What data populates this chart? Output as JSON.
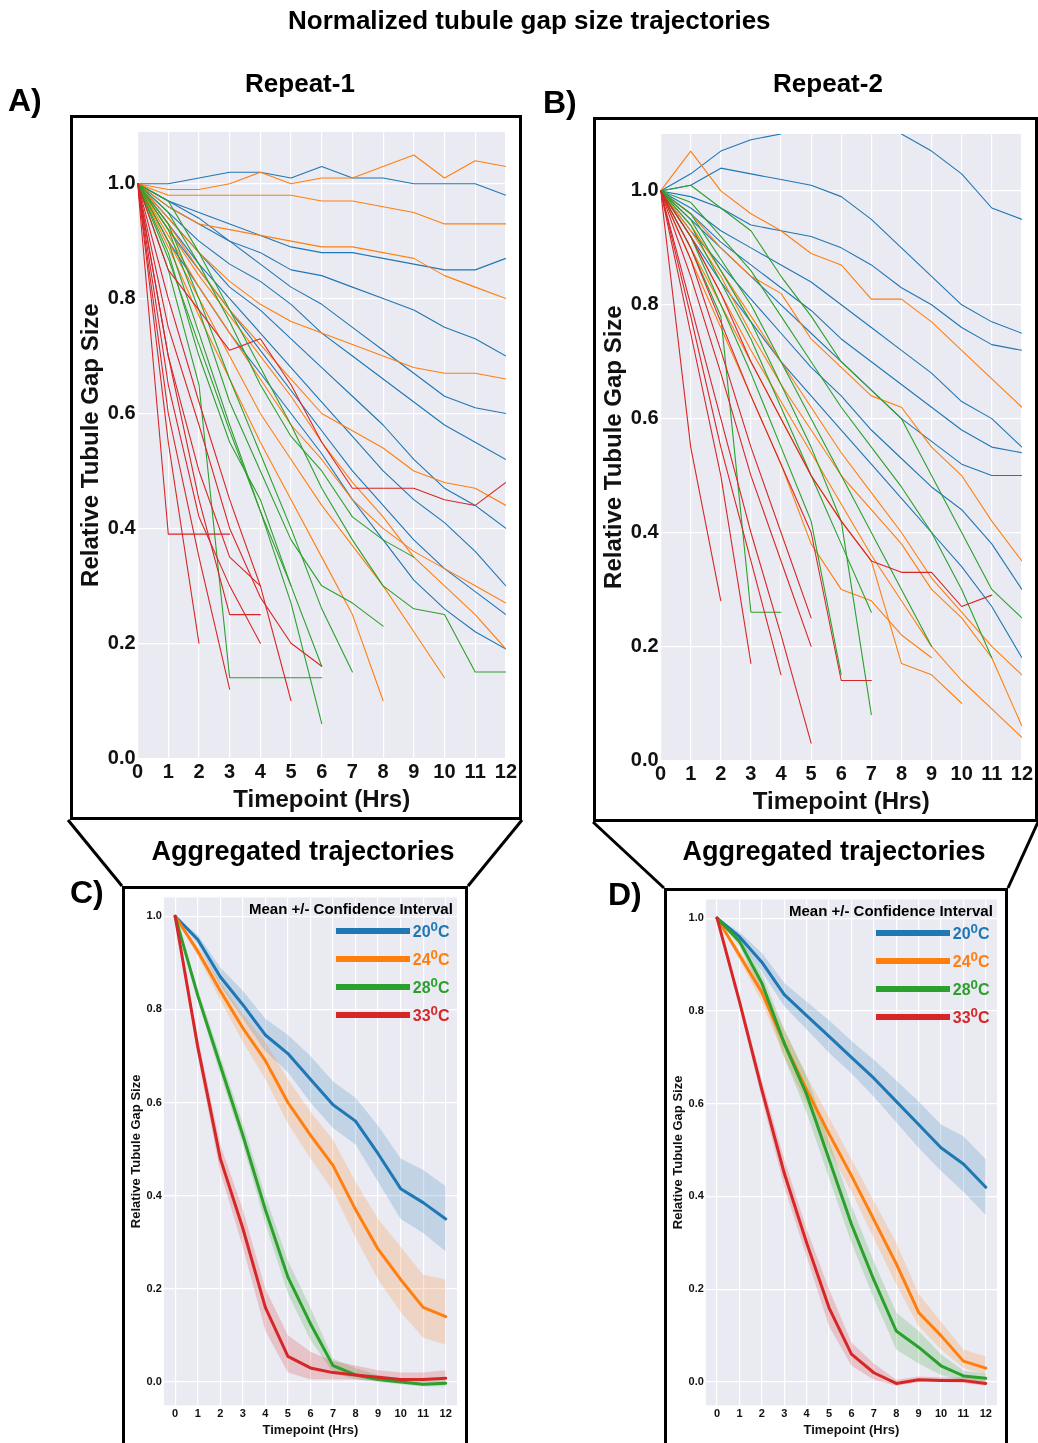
{
  "chart_data": [
    {
      "type": "line",
      "title": "Repeat-1",
      "annotations": [
        "A)",
        "Normalized tubule gap size trajectories"
      ],
      "xlabel": "Timepoint (Hrs)",
      "ylabel": "Relative Tubule Gap Size",
      "x": [
        0,
        1,
        2,
        3,
        4,
        5,
        6,
        7,
        8,
        9,
        10,
        11,
        12
      ],
      "xlim": [
        0,
        12
      ],
      "xticks": [
        0,
        1,
        2,
        3,
        4,
        5,
        6,
        7,
        8,
        9,
        10,
        11,
        12
      ],
      "ylim": [
        0,
        1.09
      ],
      "yticks": [
        {
          "value": 0,
          "label": "0.0"
        },
        {
          "value": 0.2,
          "label": "0.2"
        },
        {
          "value": 0.4,
          "label": "0.4"
        },
        {
          "value": 0.6,
          "label": "0.6"
        },
        {
          "value": 0.8,
          "label": "0.8"
        },
        {
          "value": 1,
          "label": "1.0"
        }
      ],
      "grid": true,
      "marker": "none",
      "series": [
        {
          "color": "#1f77b4",
          "values": [
            1,
            1.0,
            1.01,
            1.02,
            1.02,
            1.01,
            1.03,
            1.01,
            1.01,
            1.0,
            1.0,
            1.0,
            0.98
          ]
        },
        {
          "color": "#1f77b4",
          "values": [
            1,
            0.97,
            0.95,
            0.93,
            0.91,
            0.89,
            0.88,
            0.88,
            0.87,
            0.86,
            0.85,
            0.85,
            0.87
          ]
        },
        {
          "color": "#1f77b4",
          "values": [
            1,
            0.96,
            0.93,
            0.9,
            0.88,
            0.85,
            0.84,
            0.82,
            0.8,
            0.78,
            0.75,
            0.73,
            0.7
          ]
        },
        {
          "color": "#1f77b4",
          "values": [
            1,
            0.97,
            0.94,
            0.9,
            0.86,
            0.82,
            0.79,
            0.75,
            0.71,
            0.67,
            0.63,
            0.61,
            0.6
          ]
        },
        {
          "color": "#1f77b4",
          "values": [
            1,
            0.95,
            0.9,
            0.86,
            0.83,
            0.79,
            0.74,
            0.7,
            0.66,
            0.62,
            0.58,
            0.55,
            0.52
          ]
        },
        {
          "color": "#1f77b4",
          "values": [
            1,
            0.94,
            0.88,
            0.82,
            0.78,
            0.73,
            0.68,
            0.63,
            0.58,
            0.52,
            0.47,
            0.44,
            0.4
          ]
        },
        {
          "color": "#1f77b4",
          "values": [
            1,
            0.93,
            0.86,
            0.8,
            0.74,
            0.68,
            0.62,
            0.56,
            0.5,
            0.45,
            0.41,
            0.36,
            0.3
          ]
        },
        {
          "color": "#1f77b4",
          "values": [
            1,
            0.92,
            0.85,
            0.78,
            0.71,
            0.64,
            0.57,
            0.5,
            0.44,
            0.38,
            0.33,
            0.29,
            0.25
          ]
        },
        {
          "color": "#1f77b4",
          "values": [
            1,
            0.9,
            0.82,
            0.74,
            0.67,
            0.6,
            0.53,
            0.45,
            0.38,
            0.31,
            0.26,
            0.22,
            0.19
          ]
        },
        {
          "color": "#ff7f0e",
          "values": [
            1,
            0.99,
            0.99,
            1.0,
            1.02,
            1.0,
            1.01,
            1.01,
            1.03,
            1.05,
            1.01,
            1.04,
            1.03
          ]
        },
        {
          "color": "#ff7f0e",
          "values": [
            1,
            0.98,
            0.98,
            0.98,
            0.98,
            0.98,
            0.97,
            0.97,
            0.96,
            0.95,
            0.93,
            0.93,
            0.93
          ]
        },
        {
          "color": "#ff7f0e",
          "values": [
            1,
            0.96,
            0.93,
            0.92,
            0.91,
            0.9,
            0.89,
            0.89,
            0.88,
            0.87,
            0.84,
            0.82,
            0.8
          ]
        },
        {
          "color": "#ff7f0e",
          "values": [
            1,
            0.94,
            0.88,
            0.83,
            0.79,
            0.76,
            0.74,
            0.72,
            0.7,
            0.68,
            0.67,
            0.67,
            0.66
          ]
        },
        {
          "color": "#ff7f0e",
          "values": [
            1,
            0.93,
            0.85,
            0.78,
            0.72,
            0.66,
            0.6,
            0.57,
            0.54,
            0.5,
            0.48,
            0.47,
            0.44
          ]
        },
        {
          "color": "#ff7f0e",
          "values": [
            1,
            0.91,
            0.82,
            0.74,
            0.66,
            0.58,
            0.52,
            0.45,
            0.4,
            0.36,
            0.33,
            0.3,
            0.27
          ]
        },
        {
          "color": "#ff7f0e",
          "values": [
            1,
            0.92,
            0.84,
            0.77,
            0.7,
            0.63,
            0.55,
            0.48,
            0.42,
            0.35,
            0.3,
            0.25,
            0.19
          ]
        },
        {
          "color": "#ff7f0e",
          "values": [
            1,
            0.9,
            0.8,
            0.7,
            0.6,
            0.52,
            0.44,
            0.37,
            0.3,
            0.22,
            0.14,
            null,
            null
          ]
        },
        {
          "color": "#ff7f0e",
          "values": [
            1,
            0.89,
            0.77,
            0.66,
            0.55,
            0.45,
            0.35,
            0.25,
            0.1,
            null,
            null,
            null,
            null
          ]
        },
        {
          "color": "#2ca02c",
          "values": [
            1,
            0.97,
            0.88,
            0.78,
            0.68,
            0.58,
            0.47,
            0.38,
            0.3,
            0.26,
            0.25,
            0.15,
            0.15
          ]
        },
        {
          "color": "#2ca02c",
          "values": [
            1,
            0.95,
            0.86,
            0.76,
            0.65,
            0.56,
            0.5,
            0.42,
            0.38,
            0.35,
            null,
            null,
            null
          ]
        },
        {
          "color": "#2ca02c",
          "values": [
            1,
            0.92,
            0.78,
            0.62,
            0.5,
            0.38,
            0.3,
            0.27,
            0.23,
            null,
            null,
            null,
            null
          ]
        },
        {
          "color": "#2ca02c",
          "values": [
            1,
            0.93,
            0.8,
            0.66,
            0.53,
            0.4,
            0.26,
            0.15,
            null,
            null,
            null,
            null,
            null
          ]
        },
        {
          "color": "#2ca02c",
          "values": [
            1,
            0.87,
            0.72,
            0.57,
            0.43,
            0.3,
            null,
            null,
            null,
            null,
            null,
            null,
            null
          ]
        },
        {
          "color": "#2ca02c",
          "values": [
            1,
            0.88,
            0.7,
            0.55,
            0.45,
            0.3,
            0.16,
            null,
            null,
            null,
            null,
            null,
            null
          ]
        },
        {
          "color": "#2ca02c",
          "values": [
            1,
            0.9,
            0.74,
            0.58,
            0.43,
            0.27,
            0.06,
            null,
            null,
            null,
            null,
            null,
            null
          ]
        },
        {
          "color": "#2ca02c",
          "values": [
            1,
            0.85,
            0.65,
            0.14,
            0.14,
            0.14,
            0.14,
            null,
            null,
            null,
            null,
            null,
            null
          ]
        },
        {
          "color": "#d62728",
          "values": [
            1,
            0.85,
            0.78,
            0.71,
            0.73,
            0.65,
            0.55,
            0.47,
            0.47,
            0.47,
            0.45,
            0.44,
            0.48
          ]
        },
        {
          "color": "#d62728",
          "values": [
            1,
            0.75,
            0.58,
            0.4,
            0.28,
            0.2,
            0.16,
            null,
            null,
            null,
            null,
            null,
            null
          ]
        },
        {
          "color": "#d62728",
          "values": [
            1,
            0.8,
            0.62,
            0.45,
            0.3,
            0.1,
            null,
            null,
            null,
            null,
            null,
            null,
            null
          ]
        },
        {
          "color": "#d62728",
          "values": [
            1,
            0.7,
            0.5,
            0.35,
            0.3,
            null,
            null,
            null,
            null,
            null,
            null,
            null,
            null
          ]
        },
        {
          "color": "#d62728",
          "values": [
            1,
            0.65,
            0.42,
            0.3,
            0.2,
            null,
            null,
            null,
            null,
            null,
            null,
            null,
            null
          ]
        },
        {
          "color": "#d62728",
          "values": [
            1,
            0.7,
            0.45,
            0.25,
            0.25,
            null,
            null,
            null,
            null,
            null,
            null,
            null,
            null
          ]
        },
        {
          "color": "#d62728",
          "values": [
            1,
            0.39,
            0.39,
            0.39,
            null,
            null,
            null,
            null,
            null,
            null,
            null,
            null,
            null
          ]
        },
        {
          "color": "#d62728",
          "values": [
            1,
            0.6,
            0.35,
            0.12,
            null,
            null,
            null,
            null,
            null,
            null,
            null,
            null,
            null
          ]
        },
        {
          "color": "#d62728",
          "values": [
            1,
            0.55,
            0.2,
            null,
            null,
            null,
            null,
            null,
            null,
            null,
            null,
            null,
            null
          ]
        }
      ]
    },
    {
      "type": "line",
      "title": "Repeat-2",
      "annotations": [
        "B)"
      ],
      "xlabel": "Timepoint (Hrs)",
      "ylabel": "Relative Tubule Gap Size",
      "x": [
        0,
        1,
        2,
        3,
        4,
        5,
        6,
        7,
        8,
        9,
        10,
        11,
        12
      ],
      "xlim": [
        0,
        12
      ],
      "xticks": [
        0,
        1,
        2,
        3,
        4,
        5,
        6,
        7,
        8,
        9,
        10,
        11,
        12
      ],
      "ylim": [
        0,
        1.1
      ],
      "yticks": [
        {
          "value": 0,
          "label": "0.0"
        },
        {
          "value": 0.2,
          "label": "0.2"
        },
        {
          "value": 0.4,
          "label": "0.4"
        },
        {
          "value": 0.6,
          "label": "0.6"
        },
        {
          "value": 0.8,
          "label": "0.8"
        },
        {
          "value": 1,
          "label": "1.0"
        }
      ],
      "grid": true,
      "marker": "none",
      "series": [
        {
          "color": "#1f77b4",
          "values": [
            1,
            1.03,
            1.07,
            1.09,
            1.1,
            null,
            null,
            null,
            null,
            null,
            null,
            null,
            null
          ]
        },
        {
          "color": "#1f77b4",
          "values": [
            null,
            null,
            null,
            null,
            null,
            null,
            null,
            null,
            1.1,
            1.07,
            1.03,
            0.97,
            0.95
          ]
        },
        {
          "color": "#1f77b4",
          "values": [
            1,
            1.01,
            1.04,
            1.03,
            1.02,
            1.01,
            0.99,
            0.95,
            0.9,
            0.85,
            0.8,
            0.77,
            0.75
          ]
        },
        {
          "color": "#1f77b4",
          "values": [
            1,
            0.99,
            0.97,
            0.94,
            0.93,
            0.92,
            0.9,
            0.87,
            0.83,
            0.8,
            0.76,
            0.73,
            0.72
          ]
        },
        {
          "color": "#1f77b4",
          "values": [
            1,
            0.97,
            0.93,
            0.9,
            0.87,
            0.84,
            0.8,
            0.76,
            0.72,
            0.68,
            0.63,
            0.6,
            0.55
          ]
        },
        {
          "color": "#1f77b4",
          "values": [
            1,
            0.96,
            0.91,
            0.87,
            0.83,
            0.79,
            0.74,
            0.7,
            0.66,
            0.62,
            0.58,
            0.55,
            0.54
          ]
        },
        {
          "color": "#1f77b4",
          "values": [
            1,
            0.95,
            0.9,
            0.85,
            0.8,
            0.75,
            0.7,
            0.65,
            0.6,
            0.56,
            0.52,
            0.5,
            0.5
          ]
        },
        {
          "color": "#1f77b4",
          "values": [
            1,
            0.93,
            0.87,
            0.81,
            0.75,
            0.69,
            0.64,
            0.58,
            0.53,
            0.48,
            0.44,
            0.38,
            0.3
          ]
        },
        {
          "color": "#1f77b4",
          "values": [
            1,
            0.92,
            0.84,
            0.77,
            0.7,
            0.64,
            0.58,
            0.52,
            0.46,
            0.4,
            0.34,
            0.27,
            0.18
          ]
        },
        {
          "color": "#ff7f0e",
          "values": [
            1,
            1.07,
            1.0,
            0.96,
            0.93,
            0.89,
            0.87,
            0.81,
            0.81,
            0.77,
            0.72,
            0.67,
            0.62
          ]
        },
        {
          "color": "#ff7f0e",
          "values": [
            1,
            0.96,
            0.9,
            0.85,
            0.82,
            0.74,
            0.69,
            0.64,
            0.62,
            0.55,
            0.5,
            0.42,
            0.35
          ]
        },
        {
          "color": "#ff7f0e",
          "values": [
            1,
            0.94,
            0.86,
            0.78,
            0.7,
            0.62,
            0.54,
            0.47,
            0.4,
            0.32,
            0.26,
            0.2,
            0.15
          ]
        },
        {
          "color": "#ff7f0e",
          "values": [
            1,
            0.93,
            0.85,
            0.75,
            0.66,
            0.58,
            0.5,
            0.44,
            0.38,
            0.3,
            0.25,
            0.18,
            0.06
          ]
        },
        {
          "color": "#ff7f0e",
          "values": [
            1,
            0.92,
            0.82,
            0.72,
            0.63,
            0.54,
            0.45,
            0.36,
            0.28,
            0.2,
            0.14,
            0.09,
            0.04
          ]
        },
        {
          "color": "#ff7f0e",
          "values": [
            1,
            0.9,
            0.8,
            0.7,
            0.6,
            0.5,
            0.42,
            0.35,
            0.17,
            0.15,
            0.1,
            null,
            null
          ]
        },
        {
          "color": "#ff7f0e",
          "values": [
            1,
            0.88,
            0.76,
            0.64,
            0.52,
            0.38,
            0.3,
            0.28,
            0.22,
            0.18,
            null,
            null,
            null
          ]
        },
        {
          "color": "#2ca02c",
          "values": [
            1,
            1.01,
            0.97,
            0.93,
            0.85,
            0.78,
            0.7,
            0.65,
            0.6,
            0.5,
            0.4,
            0.3,
            0.25
          ]
        },
        {
          "color": "#2ca02c",
          "values": [
            1,
            0.98,
            0.92,
            0.86,
            0.78,
            0.7,
            0.62,
            0.55,
            0.48,
            0.4,
            0.3,
            0.18,
            null
          ]
        },
        {
          "color": "#2ca02c",
          "values": [
            1,
            0.96,
            0.88,
            0.8,
            0.7,
            0.6,
            0.5,
            0.4,
            0.3,
            0.2,
            null,
            null,
            null
          ]
        },
        {
          "color": "#2ca02c",
          "values": [
            1,
            0.94,
            0.84,
            0.74,
            0.62,
            0.5,
            0.38,
            0.26,
            null,
            null,
            null,
            null,
            null
          ]
        },
        {
          "color": "#2ca02c",
          "values": [
            1,
            0.95,
            0.86,
            0.77,
            0.66,
            0.55,
            0.42,
            0.08,
            null,
            null,
            null,
            null,
            null
          ]
        },
        {
          "color": "#2ca02c",
          "values": [
            1,
            0.92,
            0.8,
            0.68,
            0.55,
            0.42,
            0.15,
            null,
            null,
            null,
            null,
            null,
            null
          ]
        },
        {
          "color": "#2ca02c",
          "values": [
            1,
            0.9,
            0.78,
            0.26,
            0.26,
            null,
            null,
            null,
            null,
            null,
            null,
            null,
            null
          ]
        },
        {
          "color": "#d62728",
          "values": [
            1,
            0.92,
            0.82,
            0.7,
            0.6,
            0.5,
            0.42,
            0.35,
            0.33,
            0.33,
            0.27,
            0.29,
            null
          ]
        },
        {
          "color": "#d62728",
          "values": [
            1,
            0.9,
            0.77,
            0.64,
            0.52,
            0.4,
            0.14,
            0.14,
            null,
            null,
            null,
            null,
            null
          ]
        },
        {
          "color": "#d62728",
          "values": [
            1,
            0.88,
            0.72,
            0.55,
            0.4,
            0.25,
            null,
            null,
            null,
            null,
            null,
            null,
            null
          ]
        },
        {
          "color": "#d62728",
          "values": [
            1,
            0.85,
            0.68,
            0.5,
            0.35,
            0.2,
            null,
            null,
            null,
            null,
            null,
            null,
            null
          ]
        },
        {
          "color": "#d62728",
          "values": [
            1,
            0.8,
            0.6,
            0.4,
            0.22,
            0.03,
            null,
            null,
            null,
            null,
            null,
            null,
            null
          ]
        },
        {
          "color": "#d62728",
          "values": [
            1,
            0.78,
            0.55,
            0.35,
            0.15,
            null,
            null,
            null,
            null,
            null,
            null,
            null,
            null
          ]
        },
        {
          "color": "#d62728",
          "values": [
            1,
            0.75,
            0.5,
            0.17,
            null,
            null,
            null,
            null,
            null,
            null,
            null,
            null,
            null
          ]
        },
        {
          "color": "#d62728",
          "values": [
            1,
            0.55,
            0.28,
            null,
            null,
            null,
            null,
            null,
            null,
            null,
            null,
            null,
            null
          ]
        }
      ]
    },
    {
      "type": "line",
      "title": "Aggregated trajectories",
      "annotations": [
        "C)"
      ],
      "legend_title": "Mean +/- Confidence Interval",
      "legend": "top right",
      "xlabel": "Timepoint (Hrs)",
      "ylabel": "Relative Tubule Gap Size",
      "x": [
        0,
        1,
        2,
        3,
        4,
        5,
        6,
        7,
        8,
        9,
        10,
        11,
        12
      ],
      "xlim": [
        -0.5,
        12.5
      ],
      "xticks": [
        0,
        1,
        2,
        3,
        4,
        5,
        6,
        7,
        8,
        9,
        10,
        11,
        12
      ],
      "ylim": [
        -0.05,
        1.04
      ],
      "yticks": [
        {
          "value": 0,
          "label": "0.0"
        },
        {
          "value": 0.2,
          "label": "0.2"
        },
        {
          "value": 0.4,
          "label": "0.4"
        },
        {
          "value": 0.6,
          "label": "0.6"
        },
        {
          "value": 0.8,
          "label": "0.8"
        },
        {
          "value": 1,
          "label": "1.0"
        }
      ],
      "grid": true,
      "marker": "none",
      "series": [
        {
          "name": "20$^{0}$C",
          "color": "#1f77b4",
          "values": [
            1.0,
            0.95,
            0.87,
            0.81,
            0.745,
            0.705,
            0.65,
            0.595,
            0.56,
            0.49,
            0.415,
            0.385,
            0.35
          ],
          "lower": [
            1,
            0.94,
            0.85,
            0.78,
            0.71,
            0.665,
            0.6,
            0.545,
            0.51,
            0.43,
            0.35,
            0.32,
            0.28
          ],
          "upper": [
            1,
            0.96,
            0.89,
            0.84,
            0.78,
            0.745,
            0.7,
            0.645,
            0.61,
            0.55,
            0.48,
            0.455,
            0.42
          ]
        },
        {
          "name": "24$^{0}$C",
          "color": "#ff7f0e",
          "values": [
            1.0,
            0.925,
            0.84,
            0.76,
            0.69,
            0.6,
            0.53,
            0.465,
            0.37,
            0.285,
            0.22,
            0.16,
            0.14
          ],
          "lower": [
            1,
            0.915,
            0.82,
            0.73,
            0.65,
            0.555,
            0.48,
            0.41,
            0.31,
            0.22,
            0.15,
            0.095,
            0.08
          ],
          "upper": [
            1,
            0.935,
            0.86,
            0.79,
            0.73,
            0.65,
            0.58,
            0.52,
            0.43,
            0.35,
            0.29,
            0.23,
            0.22
          ]
        },
        {
          "name": "28$^{0}$C",
          "color": "#2ca02c",
          "values": [
            1.0,
            0.83,
            0.68,
            0.53,
            0.37,
            0.225,
            0.125,
            0.035,
            0.015,
            0.005,
            0.0,
            -0.005,
            -0.003
          ],
          "lower": [
            1,
            0.82,
            0.66,
            0.51,
            0.34,
            0.19,
            0.09,
            0.02,
            0.005,
            0,
            -0.005,
            -0.01,
            -0.01
          ],
          "upper": [
            1,
            0.845,
            0.7,
            0.555,
            0.4,
            0.26,
            0.16,
            0.05,
            0.03,
            0.015,
            0.008,
            0.003,
            0.003
          ]
        },
        {
          "name": "33$^{0}$C",
          "color": "#d62728",
          "values": [
            1.0,
            0.72,
            0.48,
            0.33,
            0.16,
            0.055,
            0.03,
            0.02,
            0.015,
            0.01,
            0.005,
            0.005,
            0.008
          ],
          "lower": [
            1,
            0.7,
            0.45,
            0.29,
            0.11,
            0.02,
            0.005,
            0.005,
            0.005,
            0.002,
            0,
            0,
            0
          ],
          "upper": [
            1,
            0.74,
            0.51,
            0.37,
            0.2,
            0.1,
            0.065,
            0.045,
            0.035,
            0.025,
            0.02,
            0.02,
            0.025
          ]
        }
      ]
    },
    {
      "type": "line",
      "title": "Aggregated trajectories",
      "annotations": [
        "D)"
      ],
      "legend_title": "Mean +/- Confidence Interval",
      "legend": "top right",
      "xlabel": "Timepoint (Hrs)",
      "ylabel": "Relative Tubule Gap Size",
      "x": [
        0,
        1,
        2,
        3,
        4,
        5,
        6,
        7,
        8,
        9,
        10,
        11,
        12
      ],
      "xlim": [
        -0.5,
        12.5
      ],
      "xticks": [
        0,
        1,
        2,
        3,
        4,
        5,
        6,
        7,
        8,
        9,
        10,
        11,
        12
      ],
      "ylim": [
        -0.05,
        1.04
      ],
      "yticks": [
        {
          "value": 0,
          "label": "0.0"
        },
        {
          "value": 0.2,
          "label": "0.2"
        },
        {
          "value": 0.4,
          "label": "0.4"
        },
        {
          "value": 0.6,
          "label": "0.6"
        },
        {
          "value": 0.8,
          "label": "0.8"
        },
        {
          "value": 1,
          "label": "1.0"
        }
      ],
      "grid": true,
      "marker": "none",
      "series": [
        {
          "name": "20$^{0}$C",
          "color": "#1f77b4",
          "values": [
            1.0,
            0.96,
            0.905,
            0.835,
            0.79,
            0.745,
            0.7,
            0.655,
            0.605,
            0.555,
            0.505,
            0.47,
            0.42
          ],
          "lower": [
            1,
            0.95,
            0.885,
            0.81,
            0.76,
            0.71,
            0.665,
            0.615,
            0.56,
            0.505,
            0.455,
            0.41,
            0.36
          ],
          "upper": [
            1,
            0.97,
            0.925,
            0.86,
            0.82,
            0.78,
            0.735,
            0.695,
            0.65,
            0.605,
            0.555,
            0.53,
            0.48
          ]
        },
        {
          "name": "24$^{0}$C",
          "color": "#ff7f0e",
          "values": [
            1.0,
            0.92,
            0.84,
            0.73,
            0.63,
            0.535,
            0.445,
            0.35,
            0.255,
            0.15,
            0.1,
            0.045,
            0.03
          ],
          "lower": [
            1,
            0.91,
            0.82,
            0.7,
            0.6,
            0.5,
            0.41,
            0.31,
            0.21,
            0.12,
            0.07,
            0.03,
            0.015
          ],
          "upper": [
            1,
            0.93,
            0.86,
            0.76,
            0.66,
            0.57,
            0.48,
            0.39,
            0.3,
            0.19,
            0.13,
            0.07,
            0.055
          ]
        },
        {
          "name": "28$^{0}$C",
          "color": "#2ca02c",
          "values": [
            1.0,
            0.95,
            0.86,
            0.73,
            0.62,
            0.48,
            0.34,
            0.22,
            0.11,
            0.075,
            0.035,
            0.013,
            0.008
          ],
          "lower": [
            1,
            0.94,
            0.84,
            0.7,
            0.58,
            0.44,
            0.3,
            0.18,
            0.07,
            0.04,
            0.015,
            0.003,
            0.0
          ],
          "upper": [
            1,
            0.96,
            0.88,
            0.76,
            0.66,
            0.52,
            0.38,
            0.26,
            0.15,
            0.11,
            0.06,
            0.025,
            0.018
          ]
        },
        {
          "name": "33$^{0}$C",
          "color": "#d62728",
          "values": [
            1.0,
            0.82,
            0.63,
            0.45,
            0.3,
            0.16,
            0.06,
            0.02,
            -0.003,
            0.005,
            0.003,
            0.003,
            -0.003
          ],
          "lower": [
            1,
            0.81,
            0.61,
            0.42,
            0.27,
            0.12,
            0.035,
            0.005,
            -0.008,
            0.0,
            0.0,
            -0.002,
            -0.008
          ],
          "upper": [
            1,
            0.83,
            0.65,
            0.48,
            0.33,
            0.2,
            0.085,
            0.04,
            0.005,
            0.012,
            0.01,
            0.01,
            0.003
          ]
        }
      ]
    }
  ]
}
